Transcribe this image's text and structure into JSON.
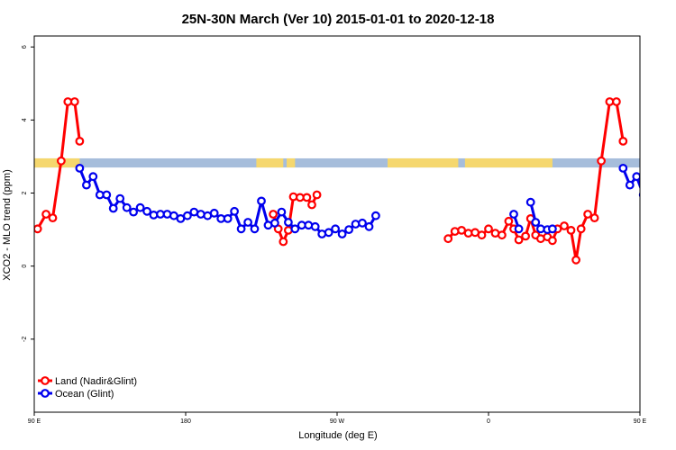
{
  "chart_data": {
    "type": "line",
    "title": "25N-30N March (Ver 10)   2015-01-01 to 2020-12-18",
    "xlabel": "Longitude (deg E)",
    "ylabel": "XCO2 - MLO trend (ppm)",
    "xlim": [
      90,
      450
    ],
    "ylim": [
      -4,
      6.3
    ],
    "x_ticks": [
      {
        "value": 90,
        "label": "90 E"
      },
      {
        "value": 180,
        "label": "180"
      },
      {
        "value": 270,
        "label": "90 W"
      },
      {
        "value": 360,
        "label": "0"
      },
      {
        "value": 450,
        "label": "90 E"
      },
      {
        "value": 540,
        "label": "180"
      }
    ],
    "y_ticks": [
      {
        "value": -2,
        "label": "-2"
      },
      {
        "value": 0,
        "label": "0"
      },
      {
        "value": 2,
        "label": "2"
      },
      {
        "value": 4,
        "label": "4"
      },
      {
        "value": 6,
        "label": "6"
      }
    ],
    "grid": false,
    "legend_position": "bottom-left",
    "surface_band": {
      "ymin": 2.7,
      "ymax": 2.95,
      "land_color": "#f5d76e",
      "ocean_color": "#a6bddb",
      "land_ranges": [
        [
          90,
          117
        ],
        [
          222,
          238
        ],
        [
          240,
          245
        ],
        [
          300,
          342
        ],
        [
          346,
          398
        ],
        [
          450,
          477
        ]
      ]
    },
    "series": [
      {
        "name": "Land (Nadir&Glint)",
        "color": "#ff0000",
        "segments": [
          [
            [
              92,
              1.02
            ],
            [
              97,
              1.42
            ],
            [
              101,
              1.32
            ],
            [
              106,
              2.88
            ],
            [
              110,
              4.5
            ],
            [
              114,
              4.5
            ],
            [
              117,
              3.42
            ]
          ],
          [
            [
              232,
              1.42
            ],
            [
              235,
              1.02
            ],
            [
              238,
              0.67
            ],
            [
              241,
              0.98
            ],
            [
              244,
              1.9
            ],
            [
              248,
              1.88
            ],
            [
              252,
              1.88
            ],
            [
              255,
              1.68
            ],
            [
              258,
              1.95
            ]
          ],
          [
            [
              336,
              0.75
            ],
            [
              340,
              0.95
            ],
            [
              344,
              0.98
            ],
            [
              348,
              0.9
            ],
            [
              352,
              0.92
            ],
            [
              356,
              0.85
            ],
            [
              360,
              1.02
            ],
            [
              364,
              0.9
            ],
            [
              368,
              0.85
            ],
            [
              372,
              1.23
            ],
            [
              375,
              1.02
            ],
            [
              378,
              0.72
            ],
            [
              382,
              0.82
            ],
            [
              385,
              1.3
            ],
            [
              388,
              0.85
            ],
            [
              391,
              0.75
            ],
            [
              395,
              0.8
            ],
            [
              398,
              0.7
            ],
            [
              401,
              1.02
            ],
            [
              405,
              1.1
            ],
            [
              409,
              0.98
            ],
            [
              412,
              0.17
            ],
            [
              415,
              1.02
            ],
            [
              419,
              1.42
            ],
            [
              423,
              1.32
            ],
            [
              427,
              2.88
            ],
            [
              432,
              4.5
            ],
            [
              436,
              4.5
            ],
            [
              440,
              3.42
            ]
          ]
        ]
      },
      {
        "name": "Ocean (Glint)",
        "color": "#0000ee",
        "segments": [
          [
            [
              117,
              2.68
            ],
            [
              121,
              2.22
            ],
            [
              125,
              2.45
            ],
            [
              129,
              1.95
            ],
            [
              133,
              1.95
            ],
            [
              137,
              1.58
            ],
            [
              141,
              1.85
            ],
            [
              145,
              1.6
            ],
            [
              149,
              1.48
            ],
            [
              153,
              1.6
            ],
            [
              157,
              1.5
            ],
            [
              161,
              1.4
            ],
            [
              165,
              1.42
            ],
            [
              169,
              1.42
            ],
            [
              173,
              1.38
            ],
            [
              177,
              1.3
            ],
            [
              181,
              1.38
            ],
            [
              185,
              1.48
            ],
            [
              189,
              1.42
            ],
            [
              193,
              1.38
            ],
            [
              197,
              1.45
            ],
            [
              201,
              1.3
            ],
            [
              205,
              1.3
            ],
            [
              209,
              1.5
            ],
            [
              213,
              1.02
            ],
            [
              217,
              1.2
            ],
            [
              221,
              1.02
            ],
            [
              225,
              1.78
            ],
            [
              229,
              1.12
            ],
            [
              233,
              1.18
            ],
            [
              237,
              1.48
            ],
            [
              241,
              1.2
            ],
            [
              245,
              1.02
            ],
            [
              249,
              1.12
            ],
            [
              253,
              1.12
            ],
            [
              257,
              1.08
            ],
            [
              261,
              0.88
            ],
            [
              265,
              0.92
            ],
            [
              269,
              1.02
            ],
            [
              273,
              0.88
            ],
            [
              277,
              1.0
            ],
            [
              281,
              1.15
            ],
            [
              285,
              1.18
            ],
            [
              289,
              1.08
            ],
            [
              293,
              1.38
            ]
          ],
          [
            [
              375,
              1.42
            ],
            [
              378,
              1.02
            ]
          ],
          [
            [
              385,
              1.75
            ],
            [
              388,
              1.2
            ],
            [
              391,
              1.02
            ],
            [
              395,
              1.0
            ],
            [
              398,
              1.02
            ]
          ],
          [
            [
              440,
              2.68
            ],
            [
              444,
              2.22
            ],
            [
              448,
              2.45
            ],
            [
              452,
              1.95
            ],
            [
              456,
              1.95
            ],
            [
              460,
              1.58
            ],
            [
              464,
              1.85
            ],
            [
              468,
              1.6
            ],
            [
              472,
              1.48
            ],
            [
              476,
              1.6
            ],
            [
              480,
              1.5
            ],
            [
              484,
              1.4
            ]
          ]
        ]
      }
    ]
  }
}
